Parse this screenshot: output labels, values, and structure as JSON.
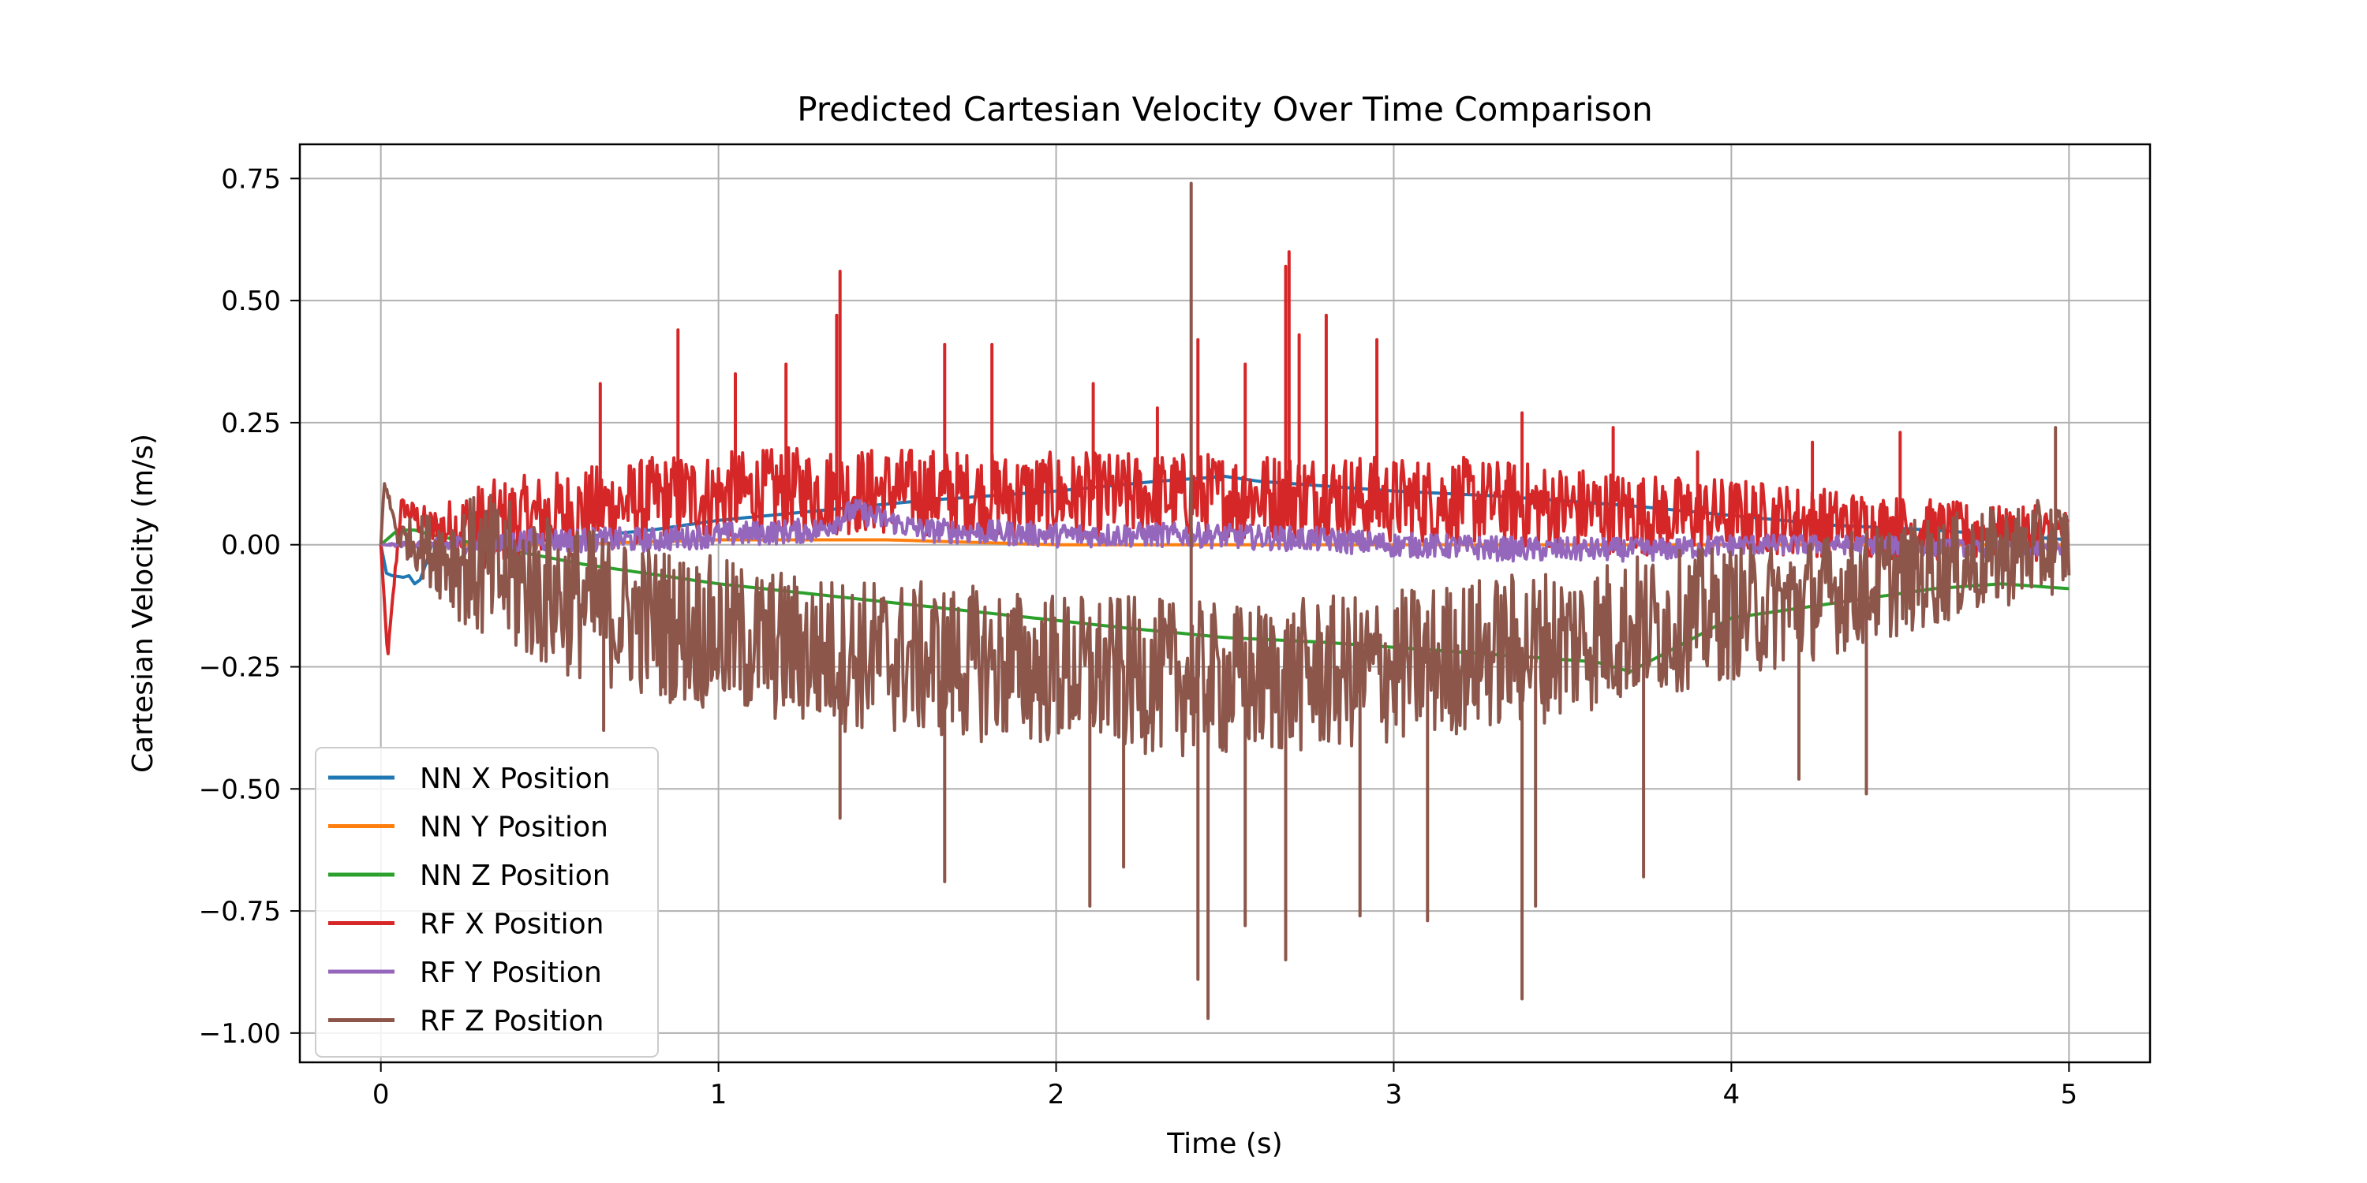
{
  "chart_data": {
    "type": "line",
    "title": "Predicted Cartesian Velocity Over Time Comparison",
    "xlabel": "Time (s)",
    "ylabel": "Cartesian Velocity (m/s)",
    "xlim": [
      -0.24,
      5.24
    ],
    "ylim": [
      -1.06,
      0.82
    ],
    "x_ticks": [
      0,
      1,
      2,
      3,
      4,
      5
    ],
    "x_tick_labels": [
      "0",
      "1",
      "2",
      "3",
      "4",
      "5"
    ],
    "y_ticks": [
      0.75,
      0.5,
      0.25,
      0.0,
      -0.25,
      -0.5,
      -0.75,
      -1.0
    ],
    "y_tick_labels": [
      "0.75",
      "0.50",
      "0.25",
      "0.00",
      "−0.25",
      "−0.50",
      "−0.75",
      "−1.00"
    ],
    "grid": true,
    "legend_position": "lower-left",
    "series": [
      {
        "name": "NN X Position",
        "color": "#1f77b4",
        "x": [
          0,
          0.02,
          0.04,
          0.06,
          0.08,
          0.1,
          0.12,
          0.15,
          0.3,
          0.5,
          0.8,
          1.0,
          1.3,
          1.6,
          2.0,
          2.3,
          2.5,
          2.6,
          2.8,
          3.0,
          3.3,
          3.5,
          3.7,
          4.0,
          4.3,
          4.6,
          4.8,
          5.0
        ],
        "y": [
          0.0,
          -0.07,
          -0.06,
          -0.07,
          -0.06,
          -0.08,
          -0.07,
          0.0,
          0.0,
          0.01,
          0.03,
          0.05,
          0.07,
          0.09,
          0.11,
          0.13,
          0.14,
          0.13,
          0.12,
          0.11,
          0.1,
          0.09,
          0.08,
          0.06,
          0.04,
          0.03,
          0.02,
          0.01
        ]
      },
      {
        "name": "NN Y Position",
        "color": "#ff7f0e",
        "x": [
          0,
          0.5,
          1.0,
          1.5,
          2.0,
          2.5,
          3.0,
          3.5,
          4.0,
          4.5,
          5.0
        ],
        "y": [
          0.0,
          0.0,
          0.01,
          0.01,
          0.0,
          0.0,
          0.0,
          0.0,
          0.0,
          0.0,
          0.0
        ]
      },
      {
        "name": "NN Z Position",
        "color": "#2ca02c",
        "x": [
          0,
          0.05,
          0.1,
          0.15,
          0.3,
          0.6,
          1.0,
          1.4,
          1.8,
          2.2,
          2.5,
          2.8,
          3.2,
          3.6,
          3.7,
          4.0,
          4.3,
          4.6,
          4.8,
          5.0
        ],
        "y": [
          0.0,
          0.03,
          0.03,
          0.02,
          0.0,
          -0.04,
          -0.08,
          -0.11,
          -0.14,
          -0.17,
          -0.19,
          -0.2,
          -0.22,
          -0.24,
          -0.26,
          -0.15,
          -0.12,
          -0.09,
          -0.08,
          -0.09
        ]
      },
      {
        "name": "RF X Position",
        "color": "#d62728",
        "x": [
          0,
          0.02,
          0.06,
          0.15,
          0.3,
          0.5,
          0.7,
          0.8,
          0.9,
          1.0,
          1.2,
          1.4,
          1.6,
          1.8,
          2.0,
          2.2,
          2.4,
          2.6,
          2.8,
          3.0,
          3.2,
          3.4,
          3.6,
          3.8,
          4.0,
          4.2,
          4.4,
          4.6,
          4.8,
          5.0
        ],
        "y": [
          0.0,
          -0.23,
          0.08,
          0.03,
          0.04,
          0.06,
          0.08,
          0.09,
          0.1,
          0.1,
          0.11,
          0.11,
          0.11,
          0.1,
          0.1,
          0.1,
          0.1,
          0.1,
          0.1,
          0.09,
          0.09,
          0.08,
          0.07,
          0.06,
          0.06,
          0.05,
          0.04,
          0.03,
          0.02,
          0.02
        ],
        "spikes": [
          [
            0.65,
            0.33
          ],
          [
            0.88,
            0.44
          ],
          [
            1.05,
            0.35
          ],
          [
            1.2,
            0.37
          ],
          [
            1.35,
            0.47
          ],
          [
            1.36,
            0.56
          ],
          [
            1.67,
            0.41
          ],
          [
            1.81,
            0.41
          ],
          [
            2.11,
            0.33
          ],
          [
            2.3,
            0.28
          ],
          [
            2.42,
            0.42
          ],
          [
            2.56,
            0.37
          ],
          [
            2.68,
            0.57
          ],
          [
            2.69,
            0.6
          ],
          [
            2.72,
            0.43
          ],
          [
            2.8,
            0.47
          ],
          [
            2.95,
            0.42
          ],
          [
            3.38,
            0.27
          ],
          [
            3.65,
            0.24
          ],
          [
            3.9,
            0.19
          ],
          [
            4.24,
            0.21
          ],
          [
            4.5,
            0.23
          ],
          [
            4.9,
            0.08
          ]
        ]
      },
      {
        "name": "RF Y Position",
        "color": "#9467bd",
        "x": [
          0,
          0.2,
          0.5,
          0.8,
          1.0,
          1.3,
          1.4,
          1.6,
          2.0,
          2.4,
          2.8,
          3.0,
          3.4,
          3.8,
          4.0,
          4.4,
          4.8,
          5.0
        ],
        "y": [
          0.0,
          0.0,
          0.01,
          0.01,
          0.02,
          0.03,
          0.07,
          0.03,
          0.02,
          0.02,
          0.01,
          0.0,
          -0.01,
          -0.01,
          0.0,
          0.0,
          -0.01,
          -0.01
        ]
      },
      {
        "name": "RF Z Position",
        "color": "#8c564b",
        "x": [
          0,
          0.01,
          0.05,
          0.15,
          0.3,
          0.5,
          0.7,
          0.9,
          1.1,
          1.3,
          1.5,
          1.7,
          1.9,
          2.1,
          2.3,
          2.5,
          2.7,
          2.9,
          3.1,
          3.3,
          3.5,
          3.7,
          3.9,
          4.1,
          4.3,
          4.5,
          4.7,
          4.9,
          5.0
        ],
        "y": [
          0.0,
          0.13,
          0.02,
          -0.01,
          -0.05,
          -0.1,
          -0.14,
          -0.17,
          -0.2,
          -0.22,
          -0.23,
          -0.24,
          -0.25,
          -0.26,
          -0.27,
          -0.28,
          -0.27,
          -0.26,
          -0.24,
          -0.22,
          -0.2,
          -0.17,
          -0.15,
          -0.13,
          -0.1,
          -0.07,
          -0.04,
          -0.01,
          0.0
        ],
        "spikes": [
          [
            0.66,
            -0.38
          ],
          [
            1.36,
            -0.56
          ],
          [
            1.67,
            -0.69
          ],
          [
            2.1,
            -0.74
          ],
          [
            2.2,
            -0.66
          ],
          [
            2.4,
            0.74
          ],
          [
            2.42,
            -0.89
          ],
          [
            2.45,
            -0.97
          ],
          [
            2.56,
            -0.78
          ],
          [
            2.68,
            -0.85
          ],
          [
            2.9,
            -0.76
          ],
          [
            3.1,
            -0.77
          ],
          [
            3.38,
            -0.93
          ],
          [
            3.42,
            -0.74
          ],
          [
            3.74,
            -0.68
          ],
          [
            4.2,
            -0.48
          ],
          [
            4.4,
            -0.51
          ],
          [
            4.96,
            0.24
          ]
        ]
      }
    ]
  }
}
